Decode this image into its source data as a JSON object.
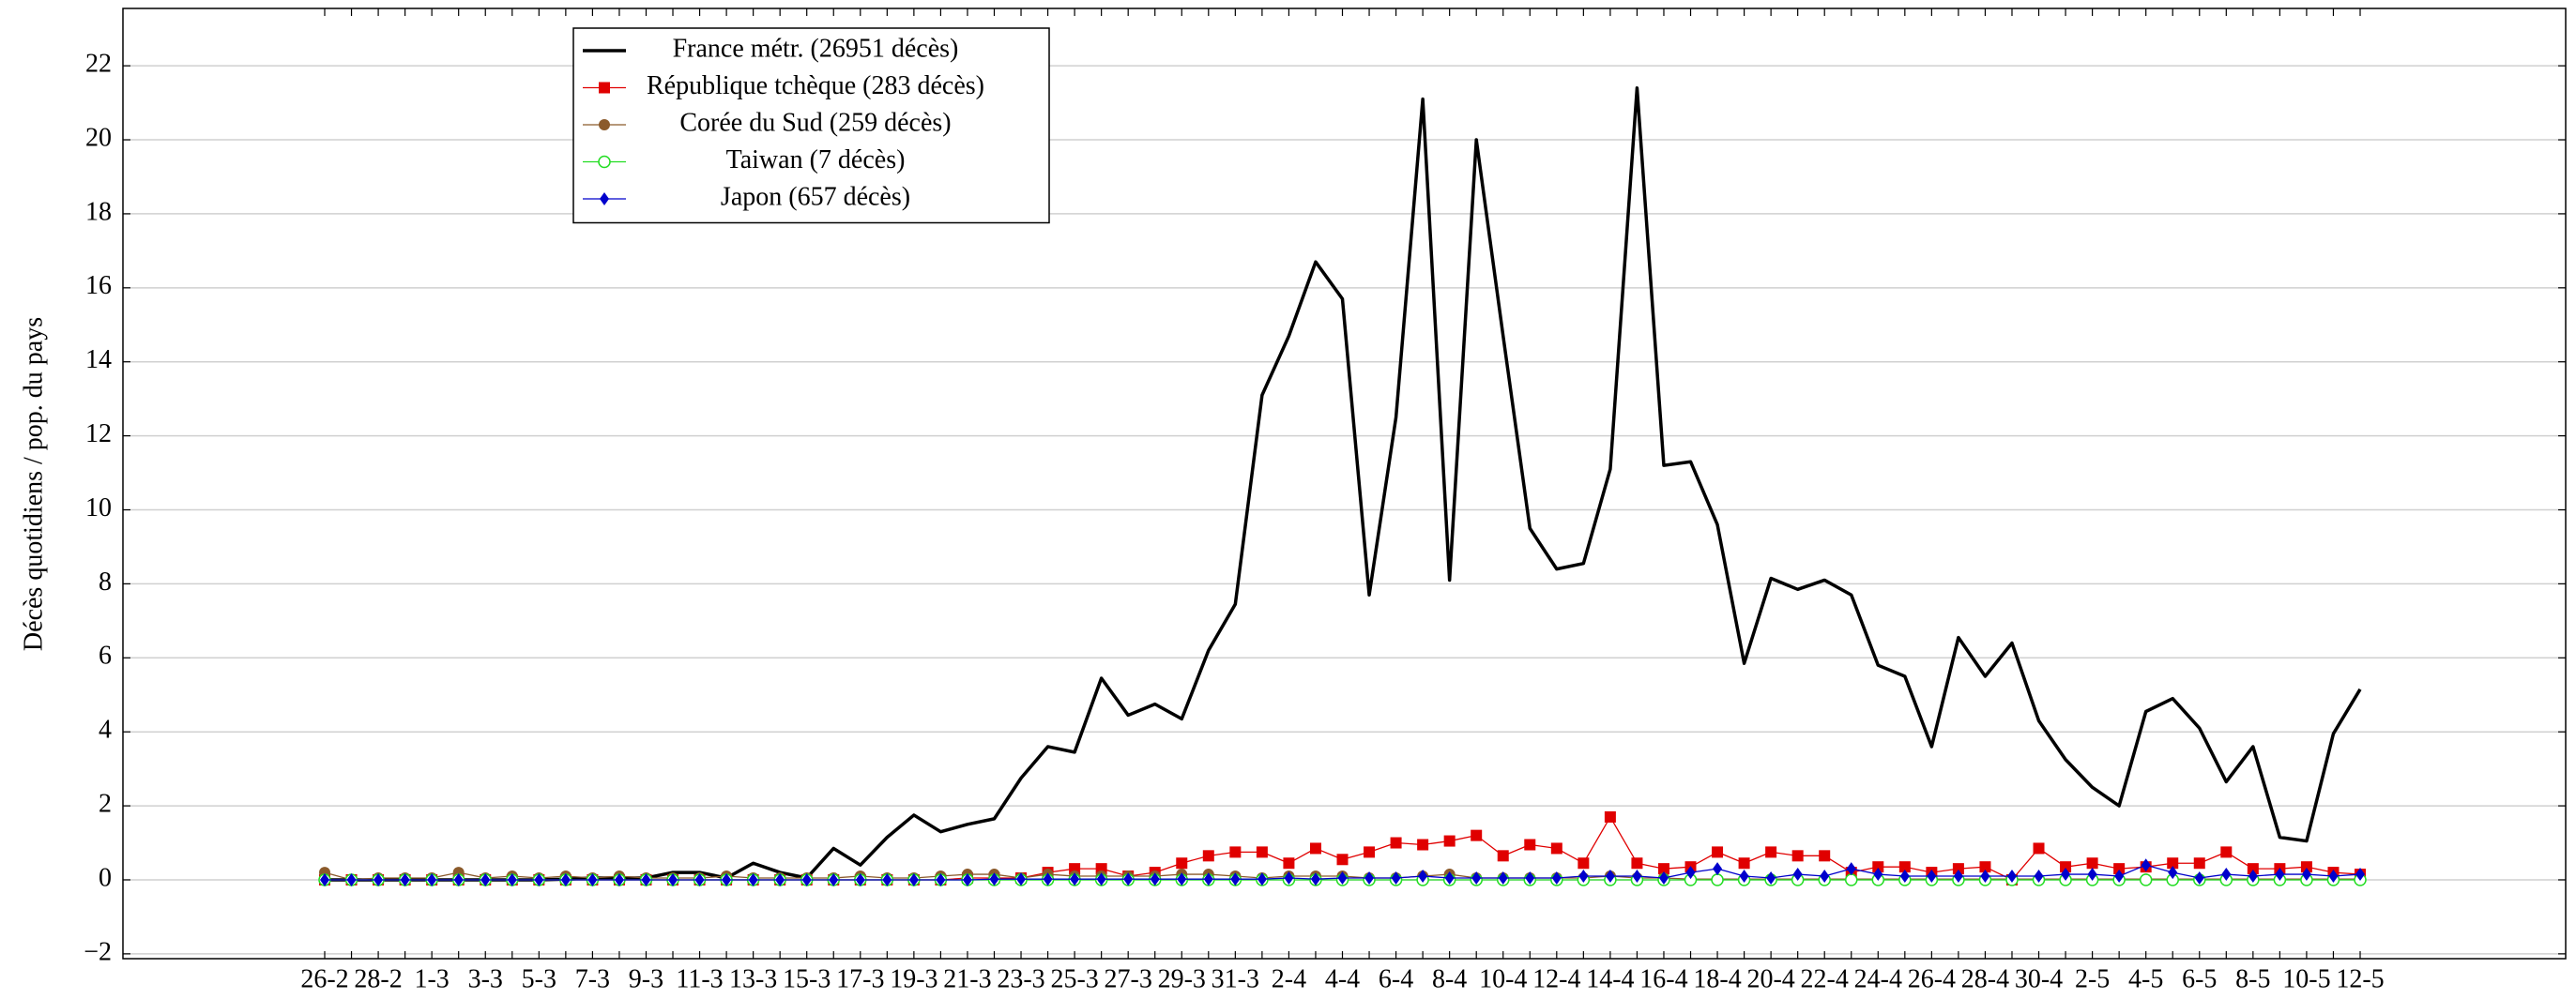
{
  "chart_data": {
    "type": "line",
    "y_label": "Décès quotidiens / pop. du pays",
    "categories": [
      "26-2",
      null,
      "28-2",
      null,
      "1-3",
      null,
      "3-3",
      null,
      "5-3",
      null,
      "7-3",
      null,
      "9-3",
      null,
      "11-3",
      null,
      "13-3",
      null,
      "15-3",
      null,
      "17-3",
      null,
      "19-3",
      null,
      "21-3",
      null,
      "23-3",
      null,
      "25-3",
      null,
      "27-3",
      null,
      "29-3",
      null,
      "31-3",
      null,
      "2-4",
      null,
      "4-4",
      null,
      "6-4",
      null,
      "8-4",
      null,
      "10-4",
      null,
      "12-4",
      null,
      "14-4",
      null,
      "16-4",
      null,
      "18-4",
      null,
      "20-4",
      null,
      "22-4",
      null,
      "24-4",
      null,
      "26-4",
      null,
      "28-4",
      null,
      "30-4",
      null,
      "2-5",
      null,
      "4-5",
      null,
      "6-5",
      null,
      "8-5",
      null,
      "10-5",
      null,
      "12-5"
    ],
    "series": [
      {
        "name": "France métr. (26951 décès)",
        "color": "#000000",
        "marker": null,
        "values": [
          0,
          0,
          0,
          0,
          0,
          0,
          0,
          0,
          0,
          0.02,
          0.05,
          0.05,
          0.05,
          0.2,
          0.2,
          0.05,
          0.45,
          0.2,
          0.05,
          0.85,
          0.4,
          1.15,
          1.75,
          1.3,
          1.5,
          1.65,
          2.75,
          3.6,
          3.45,
          5.45,
          4.45,
          4.75,
          4.35,
          6.2,
          7.45,
          13.1,
          14.7,
          16.7,
          15.7,
          7.7,
          12.5,
          21.1,
          8.1,
          20,
          14.7,
          9.5,
          8.4,
          8.55,
          11.1,
          21.4,
          11.2,
          11.3,
          9.6,
          5.85,
          8.15,
          7.85,
          8.1,
          7.7,
          5.8,
          5.5,
          3.6,
          6.55,
          5.5,
          6.4,
          4.3,
          3.25,
          2.5,
          2.0,
          4.55,
          4.9,
          4.1,
          2.65,
          3.6,
          1.15,
          1.05,
          3.95,
          5.15
        ]
      },
      {
        "name": "République tchèque (283 décès)",
        "color": "#e00000",
        "marker": "square",
        "values": [
          0,
          0,
          0,
          0,
          0,
          0,
          0,
          0,
          0,
          0,
          0,
          0,
          0,
          0,
          0,
          0,
          0,
          0,
          0,
          0,
          0,
          0,
          0,
          0,
          0.05,
          0.05,
          0.05,
          0.2,
          0.3,
          0.3,
          0.1,
          0.2,
          0.45,
          0.65,
          0.75,
          0.75,
          0.45,
          0.85,
          0.55,
          0.75,
          1.0,
          0.95,
          1.05,
          1.2,
          0.65,
          0.95,
          0.85,
          0.45,
          1.7,
          0.45,
          0.3,
          0.35,
          0.75,
          0.45,
          0.75,
          0.65,
          0.65,
          0.2,
          0.35,
          0.35,
          0.2,
          0.3,
          0.35,
          0,
          0.85,
          0.35,
          0.45,
          0.3,
          0.35,
          0.45,
          0.45,
          0.75,
          0.3,
          0.3,
          0.35,
          0.2,
          0.15
        ]
      },
      {
        "name": "Corée du Sud (259 décès)",
        "color": "#8b5a2b",
        "marker": "circle",
        "values": [
          0.2,
          0,
          0.05,
          0.05,
          0.05,
          0.2,
          0.05,
          0.1,
          0.05,
          0.1,
          0.05,
          0.1,
          0.05,
          0.05,
          0.05,
          0.1,
          0.05,
          0.05,
          0.05,
          0.05,
          0.1,
          0.05,
          0.05,
          0.1,
          0.15,
          0.15,
          0.05,
          0.15,
          0.1,
          0.1,
          0.1,
          0.1,
          0.15,
          0.15,
          0.1,
          0.05,
          0.1,
          0.1,
          0.1,
          0.05,
          0.05,
          0.1,
          0.15,
          0.05,
          0.05,
          0.05,
          0.05,
          0.05,
          0.1,
          0.05,
          0.05,
          0.02,
          0.02,
          0.02,
          0.02,
          0.02,
          0.02,
          0.02,
          0.02,
          0.02,
          0.02,
          0.02,
          0.02,
          0.02,
          0.02,
          0.02,
          0.02,
          0.02,
          0.02,
          0.02,
          0.02,
          0.02,
          0.02,
          0.02,
          0.02,
          0.02,
          0.02
        ]
      },
      {
        "name": "Taiwan (7 décès)",
        "color": "#22dd22",
        "marker": "open-circle",
        "values": [
          0,
          0,
          0,
          0,
          0,
          0,
          0,
          0,
          0,
          0,
          0,
          0,
          0,
          0,
          0,
          0,
          0,
          0,
          0,
          0,
          0,
          0,
          0,
          0,
          0,
          0,
          0,
          0,
          0,
          0,
          0,
          0,
          0,
          0,
          0,
          0,
          0,
          0,
          0,
          0,
          0,
          0,
          0,
          0,
          0,
          0,
          0,
          0,
          0,
          0,
          0,
          0,
          0,
          0,
          0,
          0,
          0,
          0,
          0,
          0,
          0,
          0,
          0,
          0,
          0,
          0,
          0,
          0,
          0,
          0,
          0,
          0,
          0,
          0,
          0,
          0,
          0
        ]
      },
      {
        "name": "Japon (657 décès)",
        "color": "#0000cc",
        "marker": "diamond",
        "values": [
          0,
          0,
          0,
          0,
          0,
          0,
          0,
          0,
          0,
          0,
          0,
          0,
          0,
          0,
          0,
          0,
          0,
          0,
          0,
          0,
          0,
          0,
          0,
          0,
          0,
          0.02,
          0.02,
          0.02,
          0.02,
          0.02,
          0.02,
          0.02,
          0.02,
          0.02,
          0.02,
          0.02,
          0.05,
          0.02,
          0.05,
          0.05,
          0.05,
          0.1,
          0.05,
          0.05,
          0.05,
          0.05,
          0.05,
          0.1,
          0.1,
          0.1,
          0.05,
          0.2,
          0.3,
          0.1,
          0.05,
          0.15,
          0.1,
          0.3,
          0.15,
          0.1,
          0.1,
          0.1,
          0.1,
          0.1,
          0.1,
          0.15,
          0.15,
          0.1,
          0.4,
          0.2,
          0.05,
          0.15,
          0.1,
          0.15,
          0.15,
          0.1,
          0.15
        ]
      }
    ],
    "ylim": [
      -2.13,
      23.55
    ],
    "yticks": [
      {
        "value": -2,
        "label": "−2"
      },
      0,
      2,
      4,
      6,
      8,
      10,
      12,
      14,
      16,
      18,
      20,
      22
    ],
    "grid": true,
    "legend": "upper left"
  }
}
